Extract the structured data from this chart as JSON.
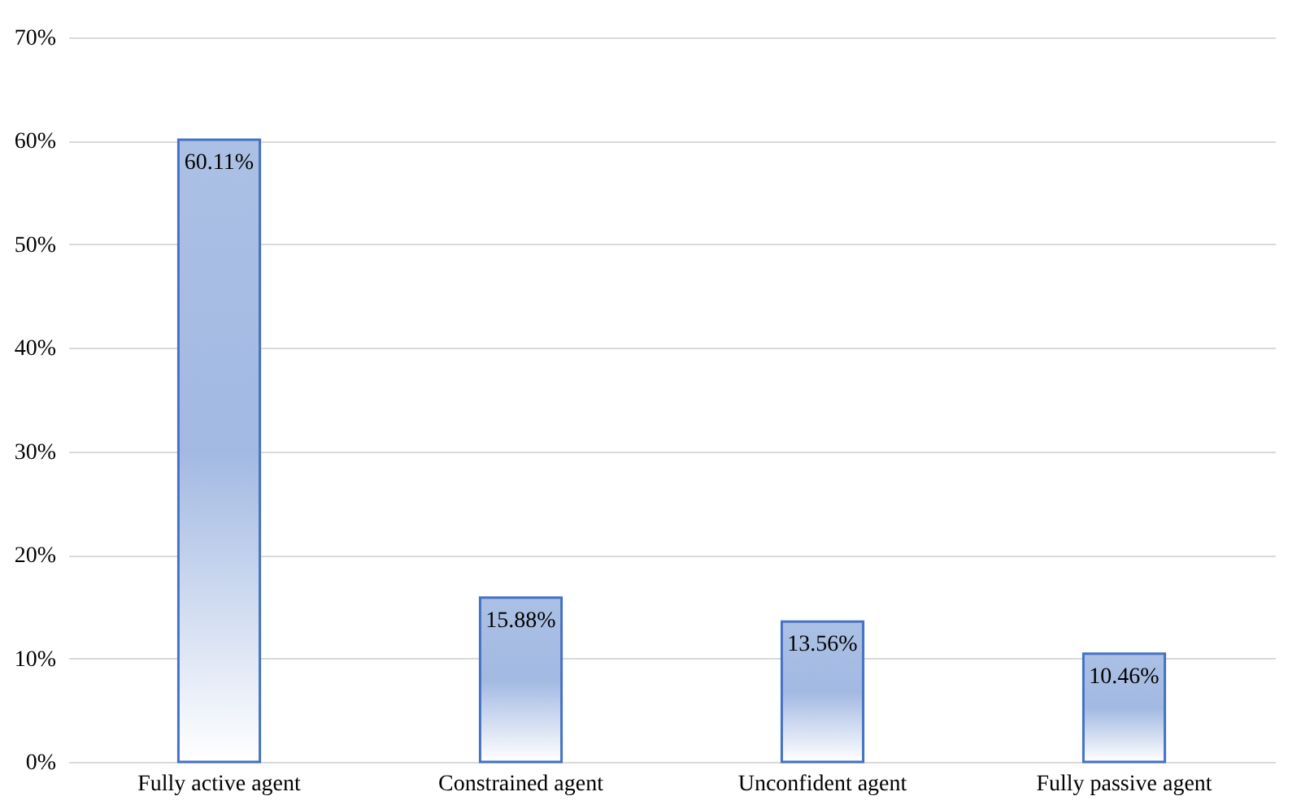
{
  "chart_data": {
    "type": "bar",
    "categories": [
      "Fully active agent",
      "Constrained agent",
      "Unconfident agent",
      "Fully passive agent"
    ],
    "values": [
      60.11,
      15.88,
      13.56,
      10.46
    ],
    "value_labels": [
      "60.11%",
      "15.88%",
      "13.56%",
      "10.46%"
    ],
    "color": "#4472c4",
    "ylim": [
      0,
      70
    ],
    "yticks": [
      {
        "value": 0,
        "label": "0%"
      },
      {
        "value": 10,
        "label": "10%"
      },
      {
        "value": 20,
        "label": "20%"
      },
      {
        "value": 30,
        "label": "30%"
      },
      {
        "value": 40,
        "label": "40%"
      },
      {
        "value": 50,
        "label": "50%"
      },
      {
        "value": 60,
        "label": "60%"
      },
      {
        "value": 70,
        "label": "70%"
      }
    ],
    "grid": "y"
  }
}
